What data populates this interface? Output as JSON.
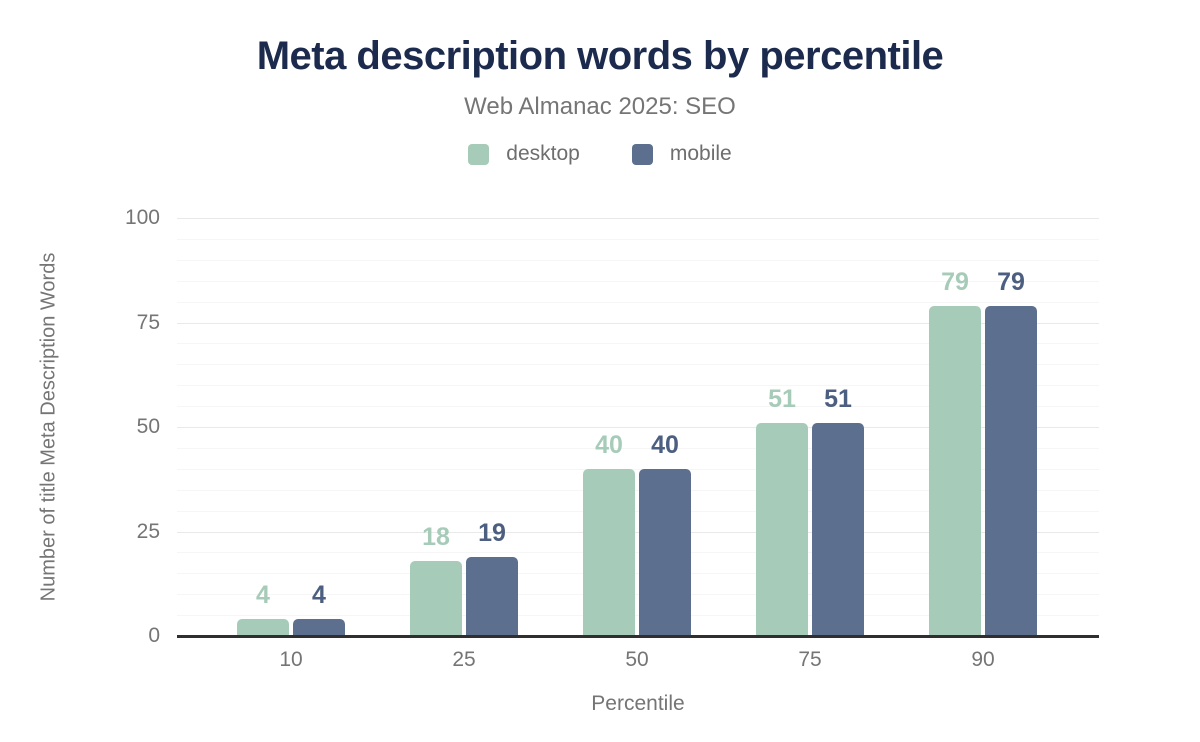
{
  "header": {
    "title": "Meta description words by percentile",
    "subtitle": "Web Almanac 2025: SEO"
  },
  "legend": {
    "items": [
      {
        "label": "desktop",
        "color": "#a7cbb9"
      },
      {
        "label": "mobile",
        "color": "#5d6f8e"
      }
    ]
  },
  "colors": {
    "title_text": "#1c2b4d",
    "subtitle_text": "#757575",
    "axis_text": "#757575",
    "axis_line": "#2f2f2f",
    "grid_major": "#e9e9e9",
    "grid_minor": "#f6f6f6",
    "desktop_bar": "#a7cbb9",
    "mobile_bar": "#5d6f8e",
    "desktop_value_label": "#a7cbb9",
    "mobile_value_label": "#4c5f80"
  },
  "chart_data": {
    "type": "bar",
    "categories": [
      "10",
      "25",
      "50",
      "75",
      "90"
    ],
    "series": [
      {
        "name": "desktop",
        "values": [
          4,
          18,
          40,
          51,
          79
        ],
        "color": "#a7cbb9",
        "label_color": "#a7cbb9"
      },
      {
        "name": "mobile",
        "values": [
          4,
          19,
          40,
          51,
          79
        ],
        "color": "#5d6f8e",
        "label_color": "#4c5f80"
      }
    ],
    "title": "Meta description words by percentile",
    "subtitle": "Web Almanac 2025: SEO",
    "xlabel": "Percentile",
    "ylabel": "Number of title Meta Description Words",
    "ylim": [
      0,
      100
    ],
    "yticks": [
      0,
      25,
      50,
      75,
      100
    ],
    "minor_grid_step": 5,
    "grid": true,
    "legend_position": "top",
    "value_labels_shown": true
  }
}
